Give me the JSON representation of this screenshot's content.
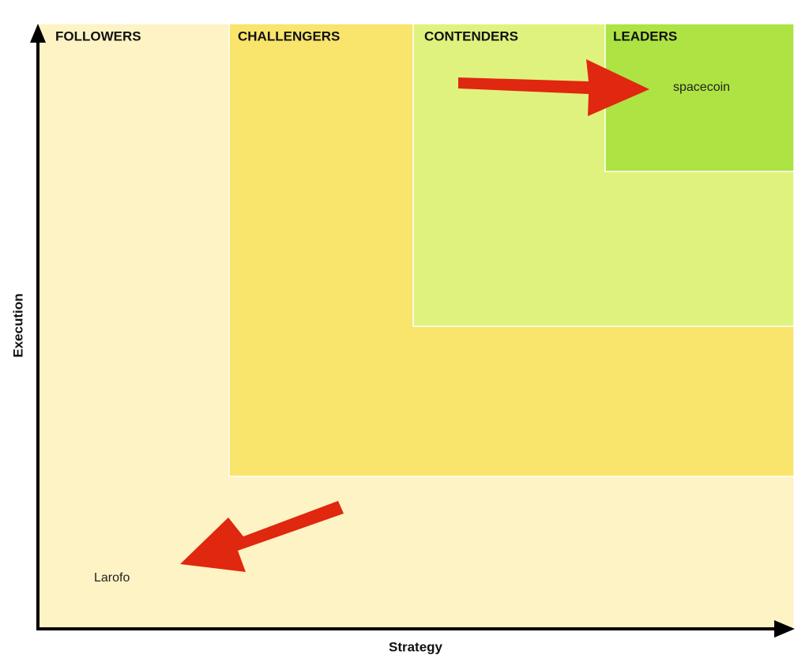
{
  "diagram": {
    "zones": [
      {
        "label": "FOLLOWERS"
      },
      {
        "label": "CHALLENGERS"
      },
      {
        "label": "CONTENDERS"
      },
      {
        "label": "LEADERS"
      }
    ],
    "items": [
      {
        "label": "spacecoin"
      },
      {
        "label": "Larofo"
      }
    ],
    "x_axis_label": "Strategy",
    "y_axis_label": "Execution"
  }
}
